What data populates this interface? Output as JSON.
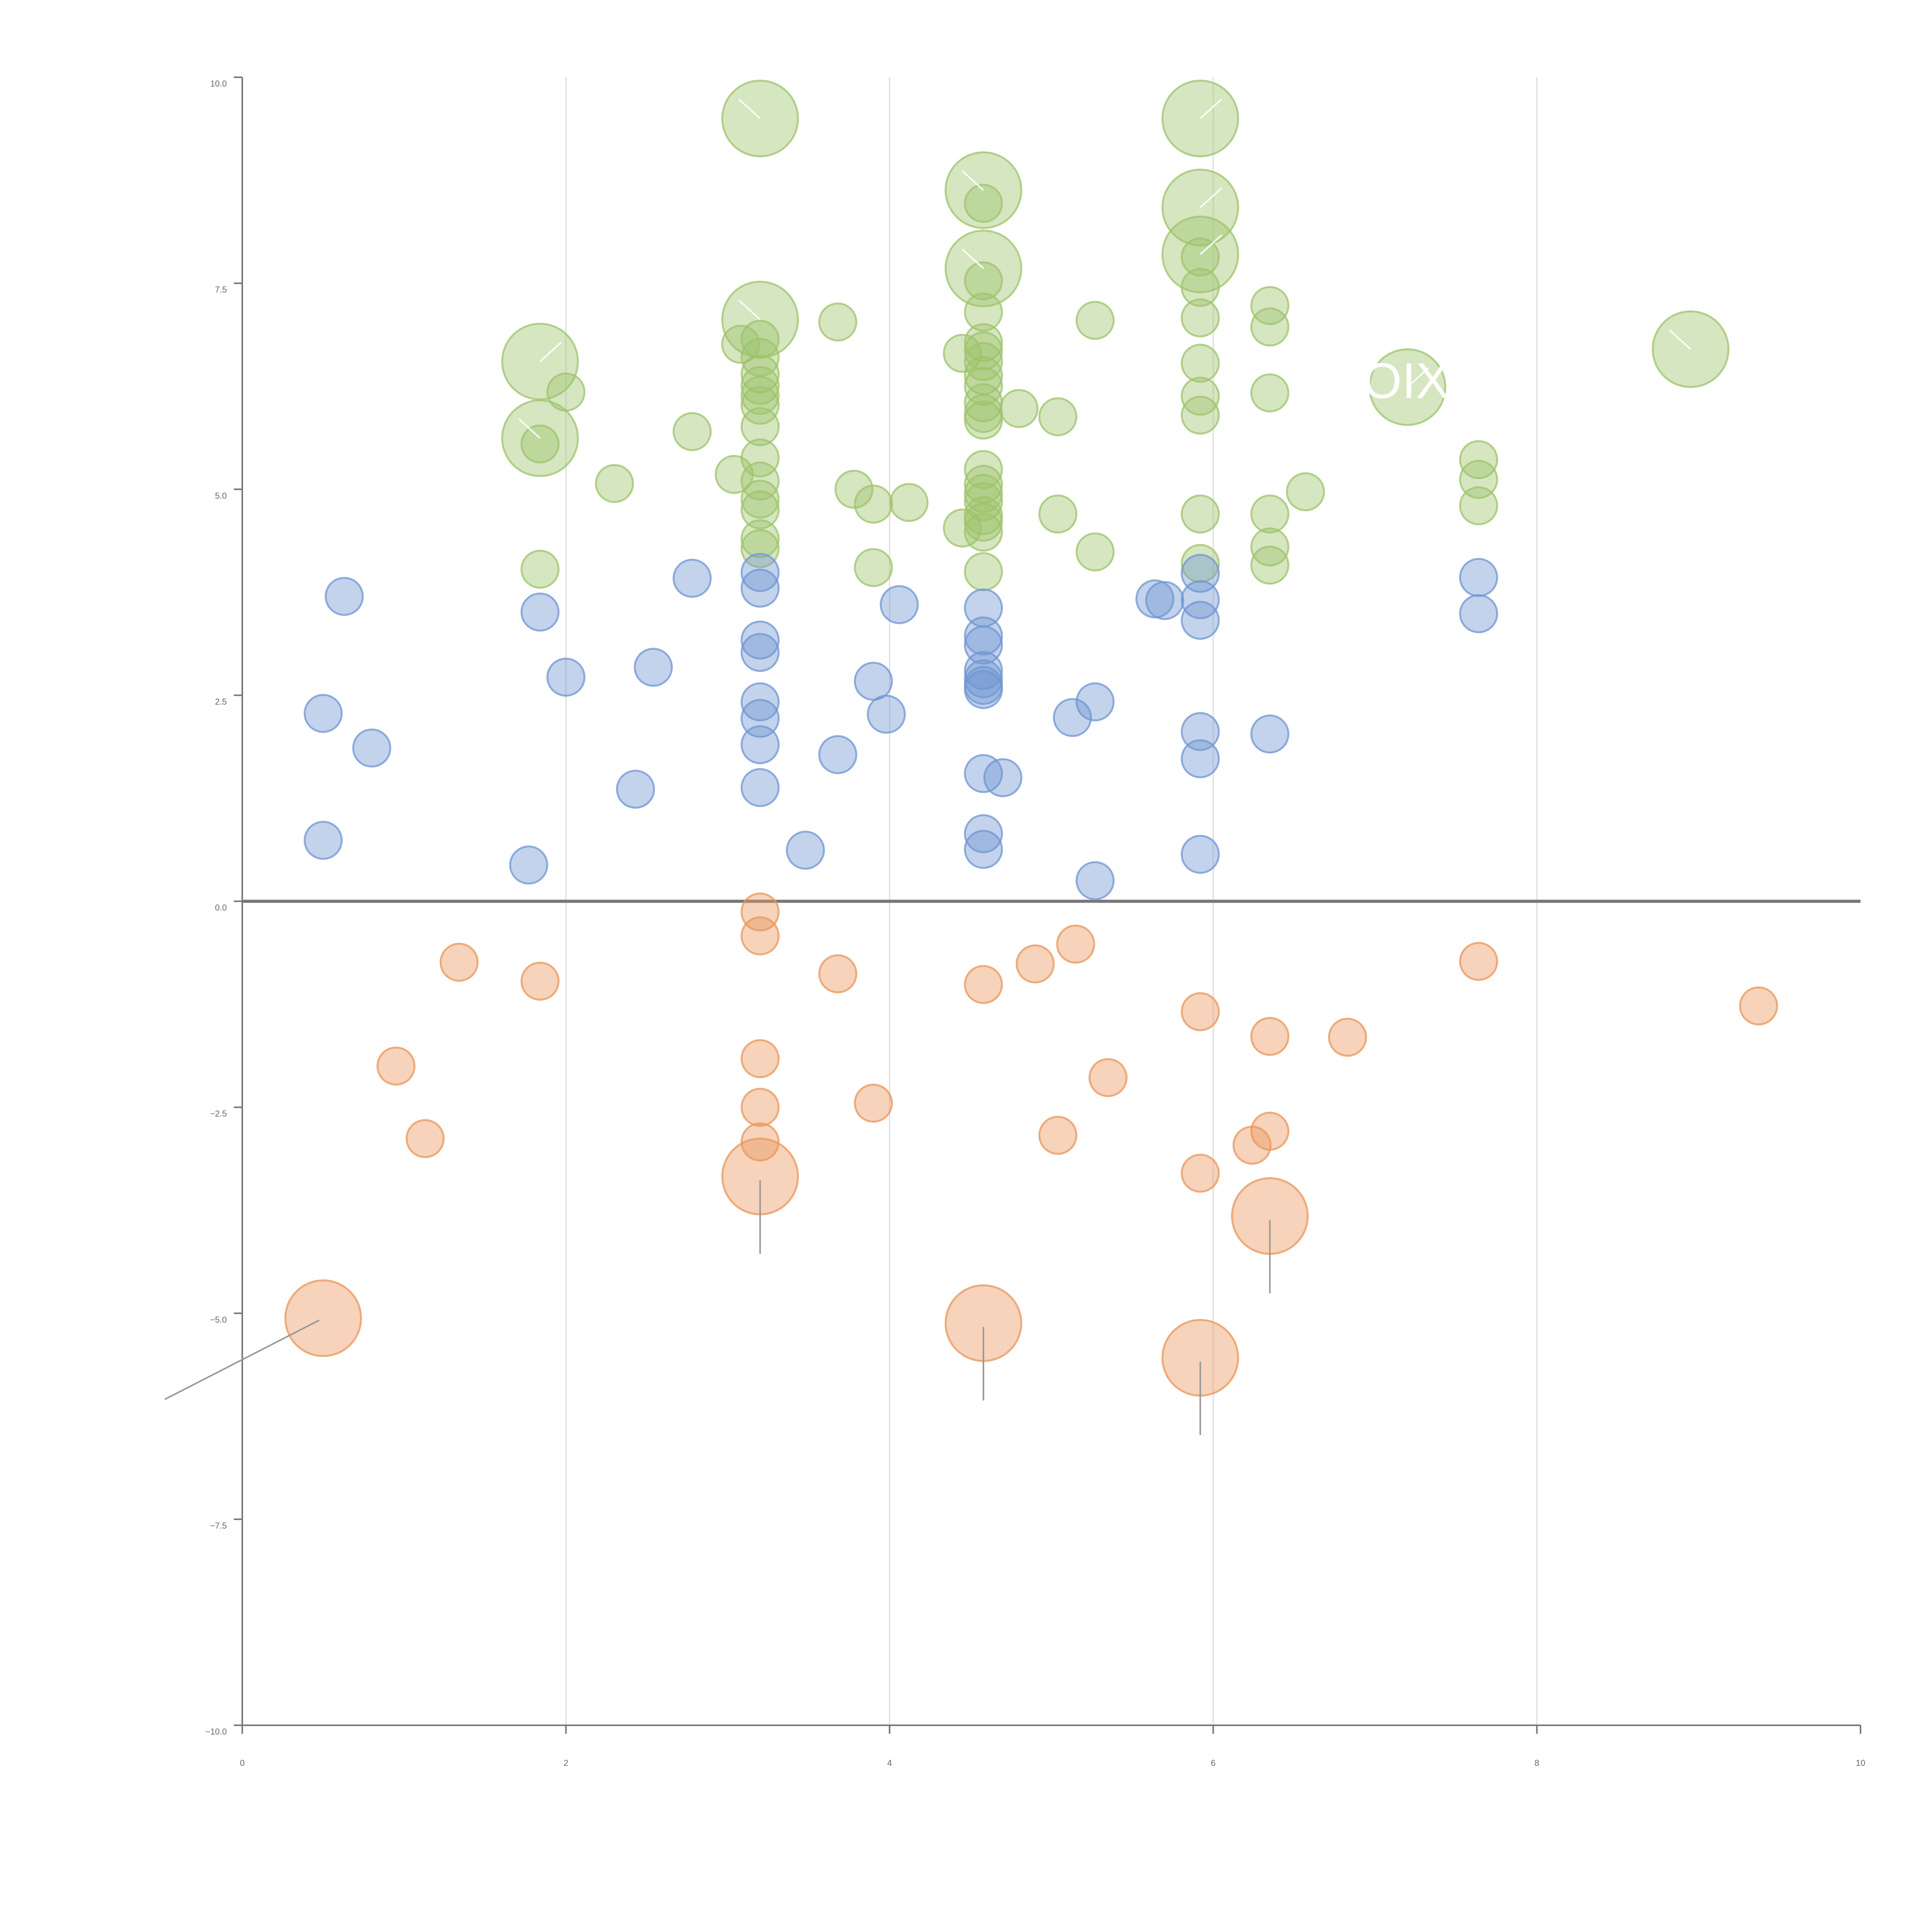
{
  "chart_data": {
    "type": "scatter",
    "subtype": "bubble",
    "xlim": [
      0,
      10
    ],
    "ylim": [
      -10,
      10
    ],
    "x_ticks": [
      "0",
      "2",
      "4",
      "6",
      "8",
      "10"
    ],
    "y_ticks": [
      "−10.0",
      "−7.5",
      "−5.0",
      "−2.5",
      "0.0",
      "2.5",
      "5.0",
      "7.5",
      "10.0"
    ],
    "grid": "vertical lines at x ticks",
    "zero_line": true,
    "colors": {
      "positive_high": "#9dc36b",
      "positive_low": "#7096d1",
      "negative": "#e9955a",
      "axis": "#777777",
      "grid": "#dddddd",
      "leader": "#999999"
    },
    "annotations": [
      "POOIX"
    ],
    "series": [
      {
        "color_key": "positive_high",
        "points": [
          [
            3.2,
            9.5,
            1
          ],
          [
            5.92,
            9.5,
            1
          ],
          [
            4.58,
            8.63,
            1
          ],
          [
            5.92,
            8.42,
            1
          ],
          [
            4.58,
            7.68,
            1
          ],
          [
            5.92,
            7.85,
            1
          ],
          [
            3.2,
            7.06,
            1
          ],
          [
            1.84,
            6.55,
            1
          ],
          [
            1.84,
            5.62,
            1
          ],
          [
            7.2,
            6.24,
            1
          ],
          [
            8.95,
            6.7,
            1
          ],
          [
            4.58,
            8.47,
            0
          ],
          [
            5.92,
            7.82,
            0
          ],
          [
            4.58,
            7.53,
            0
          ],
          [
            5.92,
            7.45,
            0
          ],
          [
            6.35,
            7.23,
            0
          ],
          [
            4.58,
            7.15,
            0
          ],
          [
            5.92,
            7.08,
            0
          ],
          [
            3.68,
            7.03,
            0
          ],
          [
            5.27,
            7.05,
            0
          ],
          [
            6.35,
            6.97,
            0
          ],
          [
            3.2,
            6.82,
            0
          ],
          [
            3.08,
            6.76,
            0
          ],
          [
            4.58,
            6.78,
            0
          ],
          [
            4.58,
            6.68,
            0
          ],
          [
            4.45,
            6.65,
            0
          ],
          [
            3.2,
            6.6,
            0
          ],
          [
            4.58,
            6.55,
            0
          ],
          [
            5.92,
            6.53,
            0
          ],
          [
            3.2,
            6.4,
            0
          ],
          [
            4.58,
            6.38,
            0
          ],
          [
            3.2,
            6.26,
            0
          ],
          [
            4.58,
            6.25,
            0
          ],
          [
            2.0,
            6.18,
            0
          ],
          [
            3.2,
            6.14,
            0
          ],
          [
            5.92,
            6.13,
            0
          ],
          [
            6.35,
            6.17,
            0
          ],
          [
            4.58,
            6.05,
            0
          ],
          [
            3.2,
            6.02,
            0
          ],
          [
            4.8,
            5.98,
            0
          ],
          [
            4.58,
            5.92,
            0
          ],
          [
            5.04,
            5.88,
            0
          ],
          [
            5.92,
            5.9,
            0
          ],
          [
            4.58,
            5.84,
            0
          ],
          [
            3.2,
            5.76,
            0
          ],
          [
            2.78,
            5.7,
            0
          ],
          [
            1.84,
            5.55,
            0
          ],
          [
            3.2,
            5.38,
            0
          ],
          [
            7.64,
            5.36,
            0
          ],
          [
            4.58,
            5.24,
            0
          ],
          [
            3.04,
            5.18,
            0
          ],
          [
            3.2,
            5.1,
            0
          ],
          [
            7.64,
            5.12,
            0
          ],
          [
            2.3,
            5.07,
            0
          ],
          [
            4.58,
            5.06,
            0
          ],
          [
            3.78,
            5.0,
            0
          ],
          [
            6.57,
            4.97,
            0
          ],
          [
            4.58,
            4.95,
            0
          ],
          [
            3.2,
            4.88,
            0
          ],
          [
            4.58,
            4.85,
            0
          ],
          [
            3.9,
            4.82,
            0
          ],
          [
            4.12,
            4.84,
            0
          ],
          [
            7.64,
            4.8,
            0
          ],
          [
            3.2,
            4.75,
            0
          ],
          [
            5.04,
            4.7,
            0
          ],
          [
            5.92,
            4.7,
            0
          ],
          [
            6.35,
            4.7,
            0
          ],
          [
            4.58,
            4.68,
            0
          ],
          [
            4.58,
            4.6,
            0
          ],
          [
            4.45,
            4.53,
            0
          ],
          [
            4.58,
            4.48,
            0
          ],
          [
            3.2,
            4.4,
            0
          ],
          [
            6.35,
            4.3,
            0
          ],
          [
            3.2,
            4.28,
            0
          ],
          [
            5.27,
            4.24,
            0
          ],
          [
            5.92,
            4.1,
            0
          ],
          [
            6.35,
            4.08,
            0
          ],
          [
            3.9,
            4.05,
            0
          ],
          [
            1.84,
            4.03,
            0
          ],
          [
            4.58,
            4.0,
            0
          ]
        ]
      },
      {
        "color_key": "positive_low",
        "points": [
          [
            0.63,
            3.7,
            0
          ],
          [
            1.84,
            3.51,
            0
          ],
          [
            2.78,
            3.92,
            0
          ],
          [
            3.2,
            3.99,
            0
          ],
          [
            3.2,
            3.8,
            0
          ],
          [
            5.92,
            3.98,
            0
          ],
          [
            7.64,
            3.93,
            0
          ],
          [
            5.64,
            3.67,
            0
          ],
          [
            5.7,
            3.65,
            0
          ],
          [
            5.92,
            3.66,
            0
          ],
          [
            4.06,
            3.6,
            0
          ],
          [
            4.58,
            3.56,
            0
          ],
          [
            7.64,
            3.49,
            0
          ],
          [
            5.92,
            3.41,
            0
          ],
          [
            4.58,
            3.22,
            0
          ],
          [
            3.2,
            3.17,
            0
          ],
          [
            4.58,
            3.11,
            0
          ],
          [
            3.2,
            3.02,
            0
          ],
          [
            2.54,
            2.84,
            0
          ],
          [
            4.58,
            2.8,
            0
          ],
          [
            2.0,
            2.72,
            0
          ],
          [
            4.58,
            2.7,
            0
          ],
          [
            3.9,
            2.67,
            0
          ],
          [
            4.58,
            2.62,
            0
          ],
          [
            4.58,
            2.57,
            0
          ],
          [
            3.2,
            2.42,
            0
          ],
          [
            5.27,
            2.42,
            0
          ],
          [
            0.5,
            2.28,
            0
          ],
          [
            3.98,
            2.27,
            0
          ],
          [
            5.13,
            2.23,
            0
          ],
          [
            3.2,
            2.22,
            0
          ],
          [
            5.92,
            2.06,
            0
          ],
          [
            6.35,
            2.03,
            0
          ],
          [
            3.2,
            1.9,
            0
          ],
          [
            0.8,
            1.86,
            0
          ],
          [
            3.68,
            1.78,
            0
          ],
          [
            5.92,
            1.73,
            0
          ],
          [
            4.58,
            1.55,
            0
          ],
          [
            4.7,
            1.5,
            0
          ],
          [
            2.43,
            1.36,
            0
          ],
          [
            3.2,
            1.38,
            0
          ],
          [
            4.58,
            0.82,
            0
          ],
          [
            0.5,
            0.74,
            0
          ],
          [
            4.58,
            0.63,
            0
          ],
          [
            3.48,
            0.62,
            0
          ],
          [
            5.92,
            0.57,
            0
          ],
          [
            1.77,
            0.44,
            0
          ],
          [
            5.27,
            0.25,
            0
          ]
        ]
      },
      {
        "color_key": "negative",
        "points": [
          [
            3.2,
            -0.13,
            0
          ],
          [
            3.2,
            -0.42,
            0
          ],
          [
            5.15,
            -0.52,
            0
          ],
          [
            1.34,
            -0.74,
            0
          ],
          [
            7.64,
            -0.73,
            0
          ],
          [
            4.9,
            -0.76,
            0
          ],
          [
            3.68,
            -0.88,
            0
          ],
          [
            1.84,
            -0.97,
            0
          ],
          [
            4.58,
            -1.01,
            0
          ],
          [
            9.37,
            -1.27,
            0
          ],
          [
            5.92,
            -1.34,
            0
          ],
          [
            6.35,
            -1.64,
            0
          ],
          [
            6.83,
            -1.65,
            0
          ],
          [
            3.2,
            -1.91,
            0
          ],
          [
            0.95,
            -2.0,
            0
          ],
          [
            5.35,
            -2.14,
            0
          ],
          [
            3.9,
            -2.45,
            0
          ],
          [
            3.2,
            -2.5,
            0
          ],
          [
            6.35,
            -2.79,
            0
          ],
          [
            5.04,
            -2.84,
            0
          ],
          [
            1.13,
            -2.88,
            0
          ],
          [
            3.2,
            -2.92,
            0
          ],
          [
            6.24,
            -2.96,
            0
          ],
          [
            5.92,
            -3.3,
            0
          ],
          [
            3.2,
            -3.34,
            1
          ],
          [
            6.35,
            -3.82,
            1
          ],
          [
            0.5,
            -5.06,
            1
          ],
          [
            4.58,
            -5.12,
            1
          ],
          [
            5.92,
            -5.54,
            1
          ]
        ]
      }
    ]
  }
}
